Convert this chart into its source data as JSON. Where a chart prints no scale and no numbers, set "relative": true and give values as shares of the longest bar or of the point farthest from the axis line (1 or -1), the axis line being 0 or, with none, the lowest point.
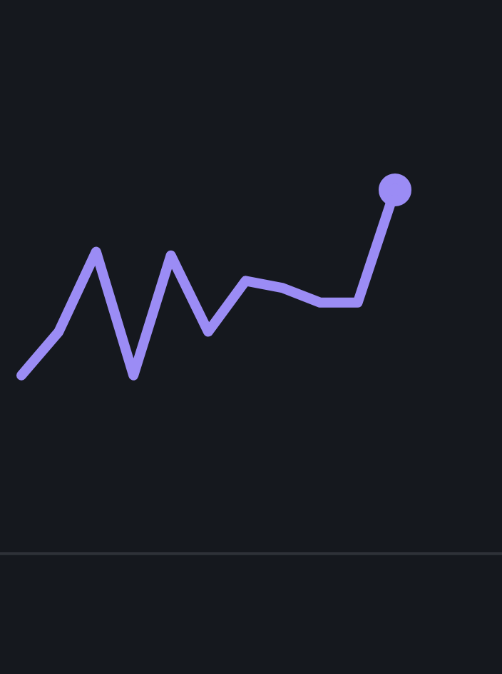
{
  "chart_data": {
    "type": "line",
    "relative": true,
    "categories": [
      null,
      null,
      null,
      null,
      null,
      null,
      null,
      null,
      null,
      null,
      null
    ],
    "series": [
      {
        "color": "#9b8cf5",
        "values": [
          0.49,
          0.61,
          0.83,
          0.49,
          0.82,
          0.61,
          0.75,
          0.73,
          0.69,
          0.69,
          1
        ]
      }
    ],
    "grid": false,
    "legend": false,
    "line_style": "solid"
  }
}
